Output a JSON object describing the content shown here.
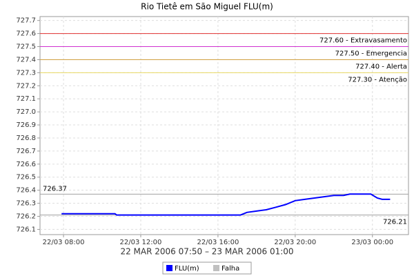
{
  "chart_data": {
    "type": "line",
    "title": "Rio Tietê em São Miguel FLU(m)",
    "x_label": "22 MAR 2006 07:50 – 23 MAR 2006 01:00",
    "x": [
      "22/03 07:54",
      "22/03 10:40",
      "22/03 10:45",
      "22/03 17:10",
      "22/03 17:30",
      "22/03 18:00",
      "22/03 18:30",
      "22/03 19:00",
      "22/03 19:30",
      "22/03 20:00",
      "22/03 20:30",
      "22/03 21:00",
      "22/03 21:30",
      "22/03 22:00",
      "22/03 22:30",
      "22/03 22:50",
      "22/03 23:55",
      "23/03 00:15",
      "23/03 00:30",
      "23/03 00:55"
    ],
    "series": [
      {
        "name": "FLU(m)",
        "color": "#0000ff",
        "values": [
          726.22,
          726.22,
          726.21,
          726.21,
          726.23,
          726.24,
          726.25,
          726.27,
          726.29,
          726.32,
          726.33,
          726.34,
          726.35,
          726.36,
          726.36,
          726.37,
          726.37,
          726.34,
          726.33,
          726.33
        ]
      },
      {
        "name": "Falha",
        "color": "#c0c0c0",
        "values": [
          null,
          null,
          null,
          null,
          null,
          null,
          null,
          null,
          null,
          null,
          null,
          null,
          null,
          null,
          null,
          null,
          null,
          null,
          null,
          null
        ]
      }
    ],
    "xlim": [
      "22/03 06:47",
      "23/03 01:52"
    ],
    "xticks": [
      "22/03 08:00",
      "22/03 12:00",
      "22/03 16:00",
      "22/03 20:00",
      "23/03 00:00"
    ],
    "ylim": [
      726.06,
      727.73
    ],
    "yticks": [
      726.1,
      726.2,
      726.3,
      726.4,
      726.5,
      726.6,
      726.7,
      726.8,
      726.9,
      {
        "value": 727,
        "label": "727.0"
      },
      727.1,
      727.2,
      727.3,
      727.4,
      727.5,
      727.6,
      727.7
    ],
    "grid": true,
    "thresholds": [
      {
        "value": 727.6,
        "label": "727.60 - Extravasamento",
        "color": "#e03030"
      },
      {
        "value": 727.5,
        "label": "727.50 - Emergencia",
        "color": "#d030d0"
      },
      {
        "value": 727.4,
        "label": "727.40 - Alerta",
        "color": "#d0a040"
      },
      {
        "value": 727.3,
        "label": "727.30 - Atenção",
        "color": "#e8d860"
      }
    ],
    "max_line": {
      "value": 726.37,
      "label": "726.37",
      "color": "#a0a0a0"
    },
    "min_line": {
      "value": 726.21,
      "label": "726.21",
      "color": "#a0a0a0"
    }
  }
}
